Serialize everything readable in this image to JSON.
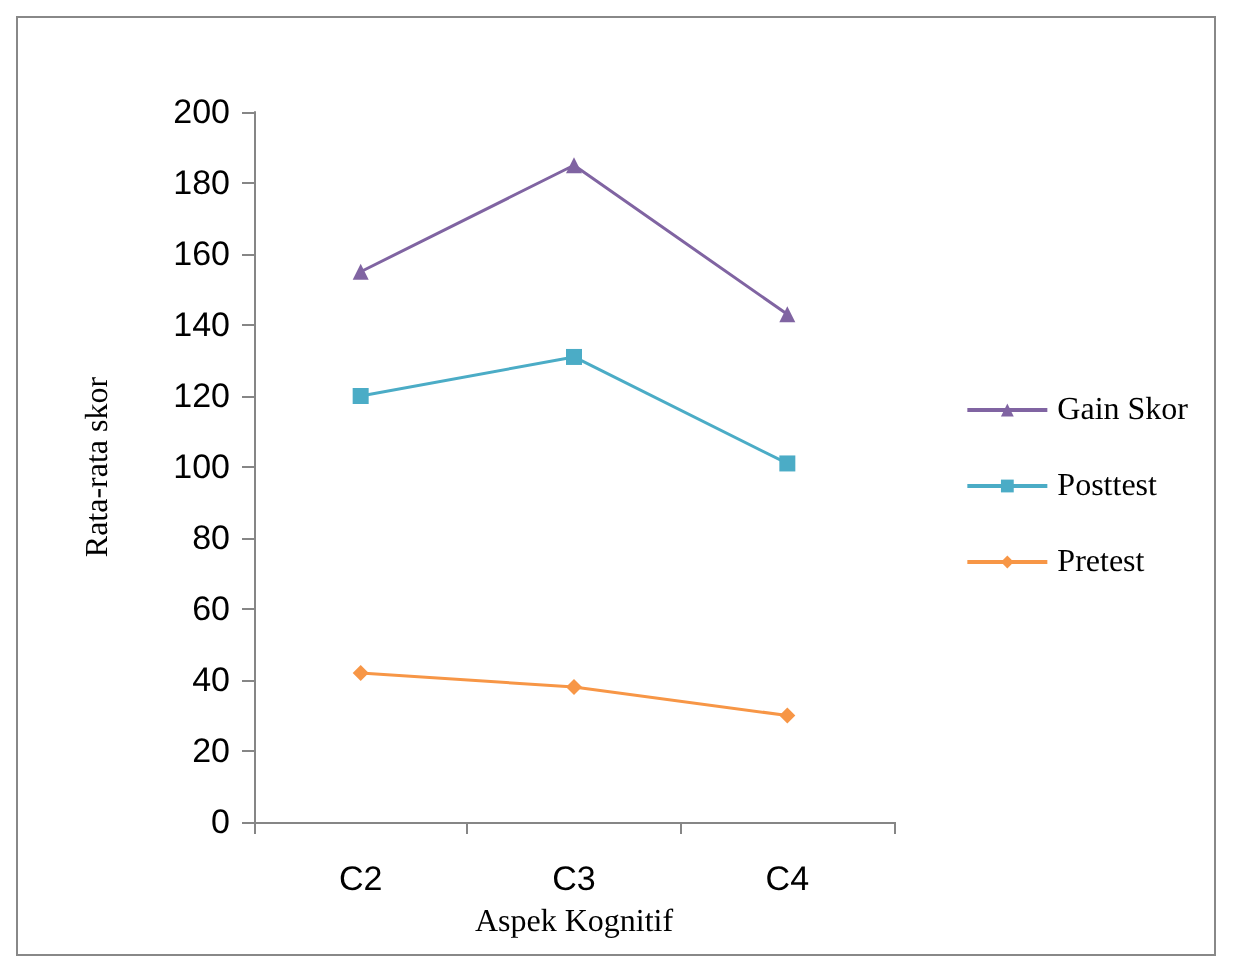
{
  "chart_data": {
    "type": "line",
    "xlabel": "Aspek Kognitif",
    "ylabel": "Rata-rata skor",
    "categories": [
      "C2",
      "C3",
      "C4"
    ],
    "series": [
      {
        "name": "Gain Skor",
        "color": "#8064a2",
        "marker": "triangle",
        "values": [
          155,
          185,
          143
        ]
      },
      {
        "name": "Posttest",
        "color": "#4bacc6",
        "marker": "square",
        "values": [
          120,
          131,
          101
        ]
      },
      {
        "name": "Pretest",
        "color": "#f79646",
        "marker": "diamond",
        "values": [
          42,
          38,
          30
        ]
      }
    ],
    "ylim": [
      0,
      200
    ],
    "yticks": [
      0,
      20,
      40,
      60,
      80,
      100,
      120,
      140,
      160,
      180,
      200
    ],
    "grid": false,
    "legend": "right"
  }
}
